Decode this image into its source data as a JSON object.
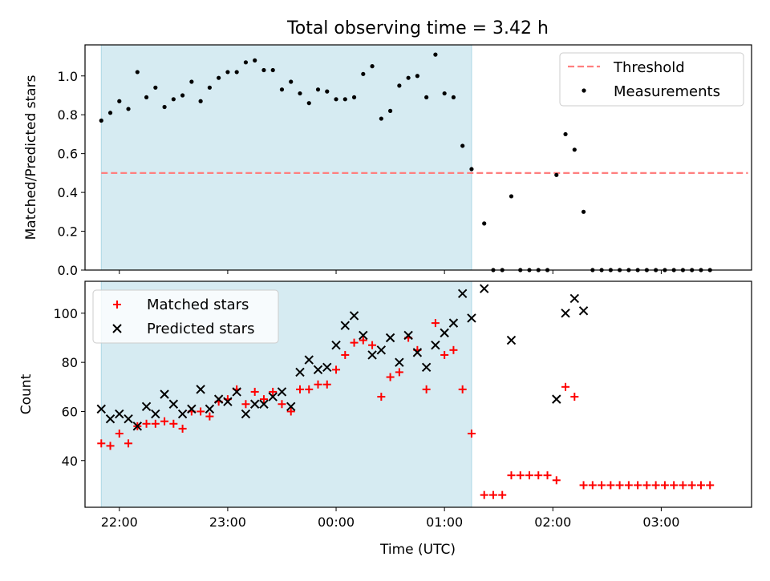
{
  "chart_data": {
    "title": "Total observing time = 3.42 h",
    "xlabel": "Time (UTC)",
    "x_ticks": [
      "22:00",
      "23:00",
      "00:00",
      "01:00",
      "02:00",
      "03:00"
    ],
    "colors": {
      "span": "#add8e6",
      "threshold": "#ff7f7f",
      "measurements": "#000000",
      "matched": "#ff0000",
      "predicted": "#000000"
    },
    "panels": [
      {
        "type": "scatter",
        "ylabel": "Matched/Predicted stars",
        "ylim": [
          0,
          1.16
        ],
        "yticks": [
          "0.0",
          "0.2",
          "0.4",
          "0.6",
          "0.8",
          "1.0"
        ],
        "ytick_values": [
          0,
          0.2,
          0.4,
          0.6,
          0.8,
          1.0
        ],
        "legend": "top-right",
        "threshold": {
          "name": "Threshold",
          "value": 0.5,
          "x_start": "21:50",
          "x_end": "03:48"
        },
        "series": [
          {
            "name": "Measurements",
            "marker": "dot",
            "points": [
              [
                "21:50",
                0.77
              ],
              [
                "21:55",
                0.81
              ],
              [
                "22:00",
                0.87
              ],
              [
                "22:05",
                0.83
              ],
              [
                "22:10",
                1.02
              ],
              [
                "22:15",
                0.89
              ],
              [
                "22:20",
                0.94
              ],
              [
                "22:25",
                0.84
              ],
              [
                "22:30",
                0.88
              ],
              [
                "22:35",
                0.9
              ],
              [
                "22:40",
                0.97
              ],
              [
                "22:45",
                0.87
              ],
              [
                "22:50",
                0.94
              ],
              [
                "22:55",
                0.99
              ],
              [
                "23:00",
                1.02
              ],
              [
                "23:05",
                1.02
              ],
              [
                "23:10",
                1.07
              ],
              [
                "23:15",
                1.08
              ],
              [
                "23:20",
                1.03
              ],
              [
                "23:25",
                1.03
              ],
              [
                "23:30",
                0.93
              ],
              [
                "23:35",
                0.97
              ],
              [
                "23:40",
                0.91
              ],
              [
                "23:45",
                0.86
              ],
              [
                "23:50",
                0.93
              ],
              [
                "23:55",
                0.92
              ],
              [
                "00:00",
                0.88
              ],
              [
                "00:05",
                0.88
              ],
              [
                "00:10",
                0.89
              ],
              [
                "00:15",
                1.01
              ],
              [
                "00:20",
                1.05
              ],
              [
                "00:25",
                0.78
              ],
              [
                "00:30",
                0.82
              ],
              [
                "00:35",
                0.95
              ],
              [
                "00:40",
                0.99
              ],
              [
                "00:45",
                1.0
              ],
              [
                "00:50",
                0.89
              ],
              [
                "00:55",
                1.11
              ],
              [
                "01:00",
                0.91
              ],
              [
                "01:05",
                0.89
              ],
              [
                "01:10",
                0.64
              ],
              [
                "01:15",
                0.52
              ],
              [
                "01:22",
                0.24
              ],
              [
                "01:27",
                0.0
              ],
              [
                "01:32",
                0.0
              ],
              [
                "01:37",
                0.38
              ],
              [
                "01:42",
                0.0
              ],
              [
                "01:47",
                0.0
              ],
              [
                "01:52",
                0.0
              ],
              [
                "01:57",
                0.0
              ],
              [
                "02:02",
                0.49
              ],
              [
                "02:07",
                0.7
              ],
              [
                "02:12",
                0.62
              ],
              [
                "02:17",
                0.3
              ],
              [
                "02:22",
                0.0
              ],
              [
                "02:27",
                0.0
              ],
              [
                "02:32",
                0.0
              ],
              [
                "02:37",
                0.0
              ],
              [
                "02:42",
                0.0
              ],
              [
                "02:47",
                0.0
              ],
              [
                "02:52",
                0.0
              ],
              [
                "02:57",
                0.0
              ],
              [
                "03:02",
                0.0
              ],
              [
                "03:07",
                0.0
              ],
              [
                "03:12",
                0.0
              ],
              [
                "03:17",
                0.0
              ],
              [
                "03:22",
                0.0
              ],
              [
                "03:27",
                0.0
              ]
            ]
          }
        ]
      },
      {
        "type": "scatter",
        "ylabel": "Count",
        "ylim": [
          21,
          113
        ],
        "yticks": [
          "40",
          "60",
          "80",
          "100"
        ],
        "ytick_values": [
          40,
          60,
          80,
          100
        ],
        "legend": "top-left",
        "series": [
          {
            "name": "Matched stars",
            "marker": "plus",
            "points": [
              [
                "21:50",
                47
              ],
              [
                "21:55",
                46
              ],
              [
                "22:00",
                51
              ],
              [
                "22:05",
                47
              ],
              [
                "22:10",
                54
              ],
              [
                "22:15",
                55
              ],
              [
                "22:20",
                55
              ],
              [
                "22:25",
                56
              ],
              [
                "22:30",
                55
              ],
              [
                "22:35",
                53
              ],
              [
                "22:40",
                60
              ],
              [
                "22:45",
                60
              ],
              [
                "22:50",
                58
              ],
              [
                "22:55",
                64
              ],
              [
                "23:00",
                65
              ],
              [
                "23:05",
                69
              ],
              [
                "23:10",
                63
              ],
              [
                "23:15",
                68
              ],
              [
                "23:20",
                65
              ],
              [
                "23:25",
                68
              ],
              [
                "23:30",
                63
              ],
              [
                "23:35",
                60
              ],
              [
                "23:40",
                69
              ],
              [
                "23:45",
                69
              ],
              [
                "23:50",
                71
              ],
              [
                "23:55",
                71
              ],
              [
                "00:00",
                77
              ],
              [
                "00:05",
                83
              ],
              [
                "00:10",
                88
              ],
              [
                "00:15",
                89
              ],
              [
                "00:20",
                87
              ],
              [
                "00:25",
                66
              ],
              [
                "00:30",
                74
              ],
              [
                "00:35",
                76
              ],
              [
                "00:40",
                90
              ],
              [
                "00:45",
                85
              ],
              [
                "00:50",
                69
              ],
              [
                "00:55",
                96
              ],
              [
                "01:00",
                83
              ],
              [
                "01:05",
                85
              ],
              [
                "01:10",
                69
              ],
              [
                "01:15",
                51
              ],
              [
                "01:22",
                26
              ],
              [
                "01:27",
                26
              ],
              [
                "01:32",
                26
              ],
              [
                "01:37",
                34
              ],
              [
                "01:42",
                34
              ],
              [
                "01:47",
                34
              ],
              [
                "01:52",
                34
              ],
              [
                "01:57",
                34
              ],
              [
                "02:02",
                32
              ],
              [
                "02:07",
                70
              ],
              [
                "02:12",
                66
              ],
              [
                "02:17",
                30
              ],
              [
                "02:22",
                30
              ],
              [
                "02:27",
                30
              ],
              [
                "02:32",
                30
              ],
              [
                "02:37",
                30
              ],
              [
                "02:42",
                30
              ],
              [
                "02:47",
                30
              ],
              [
                "02:52",
                30
              ],
              [
                "02:57",
                30
              ],
              [
                "03:02",
                30
              ],
              [
                "03:07",
                30
              ],
              [
                "03:12",
                30
              ],
              [
                "03:17",
                30
              ],
              [
                "03:22",
                30
              ],
              [
                "03:27",
                30
              ]
            ]
          },
          {
            "name": "Predicted stars",
            "marker": "cross",
            "points": [
              [
                "21:50",
                61
              ],
              [
                "21:55",
                57
              ],
              [
                "22:00",
                59
              ],
              [
                "22:05",
                57
              ],
              [
                "22:10",
                54
              ],
              [
                "22:15",
                62
              ],
              [
                "22:20",
                59
              ],
              [
                "22:25",
                67
              ],
              [
                "22:30",
                63
              ],
              [
                "22:35",
                59
              ],
              [
                "22:40",
                61
              ],
              [
                "22:45",
                69
              ],
              [
                "22:50",
                61
              ],
              [
                "22:55",
                65
              ],
              [
                "23:00",
                64
              ],
              [
                "23:05",
                68
              ],
              [
                "23:10",
                59
              ],
              [
                "23:15",
                63
              ],
              [
                "23:20",
                63
              ],
              [
                "23:25",
                66
              ],
              [
                "23:30",
                68
              ],
              [
                "23:35",
                62
              ],
              [
                "23:40",
                76
              ],
              [
                "23:45",
                81
              ],
              [
                "23:50",
                77
              ],
              [
                "23:55",
                78
              ],
              [
                "00:00",
                87
              ],
              [
                "00:05",
                95
              ],
              [
                "00:10",
                99
              ],
              [
                "00:15",
                91
              ],
              [
                "00:20",
                83
              ],
              [
                "00:25",
                85
              ],
              [
                "00:30",
                90
              ],
              [
                "00:35",
                80
              ],
              [
                "00:40",
                91
              ],
              [
                "00:45",
                84
              ],
              [
                "00:50",
                78
              ],
              [
                "00:55",
                87
              ],
              [
                "01:00",
                92
              ],
              [
                "01:05",
                96
              ],
              [
                "01:10",
                108
              ],
              [
                "01:15",
                98
              ],
              [
                "01:22",
                110
              ],
              [
                "01:37",
                89
              ],
              [
                "02:02",
                65
              ],
              [
                "02:07",
                100
              ],
              [
                "02:12",
                106
              ],
              [
                "02:17",
                101
              ]
            ]
          }
        ]
      }
    ]
  }
}
